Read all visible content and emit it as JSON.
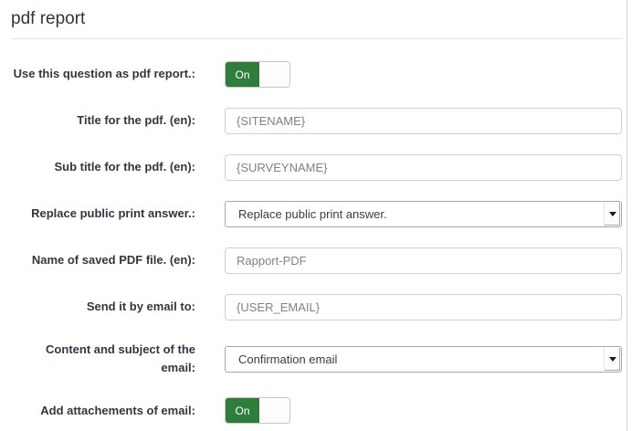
{
  "page": {
    "title": "pdf report"
  },
  "colors": {
    "toggle_on_green": "#2e7d3b",
    "label_text": "#32373f",
    "input_value_text": "#828282",
    "select_value_text": "#3d3d3d"
  },
  "icons": {
    "select_dropdown": "chevron-down-icon"
  },
  "form": {
    "rows": [
      {
        "type": "toggle",
        "label": "Use this question as pdf report.:",
        "value": "On"
      },
      {
        "type": "text",
        "label": "Title for the pdf. (en):",
        "value": "{SITENAME}"
      },
      {
        "type": "text",
        "label": "Sub title for the pdf. (en):",
        "value": "{SURVEYNAME}"
      },
      {
        "type": "select",
        "label": "Replace public print answer.:",
        "value": "Replace public print answer."
      },
      {
        "type": "text",
        "label": "Name of saved PDF file. (en):",
        "value": "Rapport-PDF"
      },
      {
        "type": "text",
        "label": "Send it by email to:",
        "value": "{USER_EMAIL}"
      },
      {
        "type": "select",
        "label": "Content and subject of the email:",
        "value": "Confirmation email"
      },
      {
        "type": "toggle",
        "label": "Add attachements of email:",
        "value": "On"
      }
    ]
  }
}
